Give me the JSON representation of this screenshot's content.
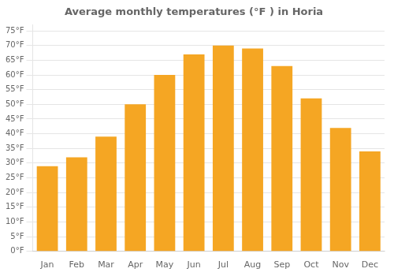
{
  "chart_data": {
    "type": "bar",
    "title": "Average monthly temperatures (°F ) in Horia",
    "categories": [
      "Jan",
      "Feb",
      "Mar",
      "Apr",
      "May",
      "Jun",
      "Jul",
      "Aug",
      "Sep",
      "Oct",
      "Nov",
      "Dec"
    ],
    "values": [
      29,
      32,
      39,
      50,
      60,
      67,
      70,
      69,
      63,
      52,
      42,
      34
    ],
    "color": "#F5A623",
    "ylim": [
      0,
      77
    ],
    "yticks": [
      {
        "value": 0,
        "label": "0°F"
      },
      {
        "value": 5,
        "label": "5°F"
      },
      {
        "value": 10,
        "label": "10°F"
      },
      {
        "value": 15,
        "label": "15°F"
      },
      {
        "value": 20,
        "label": "20°F"
      },
      {
        "value": 25,
        "label": "25°F"
      },
      {
        "value": 30,
        "label": "30°F"
      },
      {
        "value": 35,
        "label": "35°F"
      },
      {
        "value": 40,
        "label": "40°F"
      },
      {
        "value": 45,
        "label": "45°F"
      },
      {
        "value": 50,
        "label": "50°F"
      },
      {
        "value": 55,
        "label": "55°F"
      },
      {
        "value": 60,
        "label": "60°F"
      },
      {
        "value": 65,
        "label": "65°F"
      },
      {
        "value": 70,
        "label": "70°F"
      },
      {
        "value": 75,
        "label": "75°F"
      }
    ],
    "grid": true
  }
}
